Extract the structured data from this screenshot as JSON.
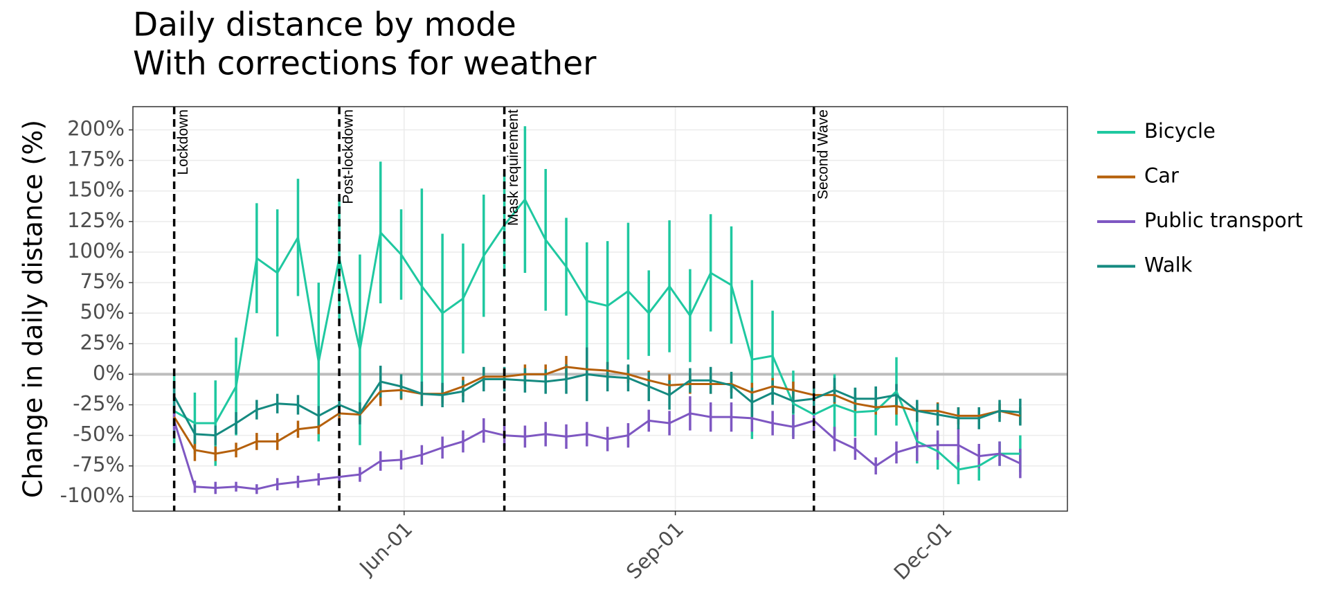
{
  "chart_data": {
    "type": "line",
    "title": "Daily distance by mode",
    "subtitle": "With corrections for weather",
    "y_label": "Change in daily distance (%)",
    "x": [
      "Mar-15",
      "Mar-22",
      "Mar-29",
      "Apr-05",
      "Apr-12",
      "Apr-19",
      "Apr-26",
      "May-03",
      "May-10",
      "May-17",
      "May-24",
      "May-31",
      "Jun-07",
      "Jun-14",
      "Jun-21",
      "Jun-28",
      "Jul-05",
      "Jul-12",
      "Jul-19",
      "Jul-26",
      "Aug-02",
      "Aug-09",
      "Aug-16",
      "Aug-23",
      "Aug-30",
      "Sep-06",
      "Sep-13",
      "Sep-20",
      "Sep-27",
      "Oct-04",
      "Oct-11",
      "Oct-18",
      "Oct-25",
      "Nov-01",
      "Nov-08",
      "Nov-15",
      "Nov-22",
      "Nov-29",
      "Dec-06",
      "Dec-13",
      "Dec-20",
      "Dec-27"
    ],
    "series": [
      {
        "name": "Bicycle",
        "color": "#1fc8a0",
        "values": [
          -30,
          -40,
          -40,
          -10,
          95,
          83,
          112,
          10,
          95,
          20,
          116,
          98,
          72,
          50,
          62,
          97,
          122,
          143,
          110,
          88,
          60,
          56,
          68,
          50,
          72,
          48,
          83,
          73,
          12,
          15,
          -24,
          -33,
          -25,
          -31,
          -30,
          -14,
          -55,
          -63,
          -78,
          -75,
          -65,
          -65
        ],
        "errors": [
          30,
          25,
          35,
          40,
          45,
          52,
          48,
          65,
          50,
          78,
          58,
          37,
          80,
          65,
          45,
          50,
          42,
          60,
          58,
          40,
          48,
          53,
          56,
          35,
          54,
          38,
          48,
          48,
          65,
          37,
          27,
          15,
          25,
          20,
          20,
          28,
          18,
          15,
          12,
          12,
          10,
          15
        ]
      },
      {
        "name": "Car",
        "color": "#b5600b",
        "values": [
          -35,
          -62,
          -65,
          -62,
          -55,
          -55,
          -45,
          -43,
          -32,
          -33,
          -14,
          -13,
          -16,
          -16,
          -10,
          -2,
          -2,
          0,
          0,
          6,
          4,
          3,
          0,
          -5,
          -9,
          -8,
          -8,
          -8,
          -15,
          -10,
          -13,
          -17,
          -17,
          -24,
          -27,
          -26,
          -30,
          -30,
          -34,
          -34,
          -30,
          -34
        ],
        "errors": [
          8,
          9,
          6,
          6,
          7,
          7,
          7,
          6,
          6,
          6,
          12,
          8,
          8,
          8,
          8,
          7,
          7,
          8,
          8,
          9,
          8,
          7,
          7,
          8,
          9,
          8,
          8,
          7,
          8,
          7,
          7,
          7,
          7,
          6,
          6,
          7,
          7,
          7,
          7,
          7,
          6,
          7
        ]
      },
      {
        "name": "Public transport",
        "color": "#7e57c2",
        "values": [
          -38,
          -92,
          -93,
          -92,
          -94,
          -90,
          -88,
          -86,
          -84,
          -82,
          -71,
          -70,
          -66,
          -60,
          -55,
          -46,
          -50,
          -51,
          -49,
          -51,
          -49,
          -53,
          -50,
          -38,
          -40,
          -32,
          -35,
          -35,
          -36,
          -40,
          -43,
          -38,
          -53,
          -61,
          -75,
          -64,
          -59,
          -58,
          -58,
          -67,
          -65,
          -73
        ],
        "errors": [
          8,
          5,
          5,
          4,
          4,
          5,
          5,
          5,
          5,
          6,
          8,
          8,
          8,
          9,
          9,
          10,
          9,
          9,
          10,
          10,
          10,
          10,
          10,
          9,
          10,
          14,
          12,
          12,
          11,
          10,
          10,
          10,
          10,
          9,
          7,
          9,
          12,
          12,
          14,
          10,
          10,
          12
        ]
      },
      {
        "name": "Walk",
        "color": "#158a80",
        "values": [
          -18,
          -49,
          -50,
          -40,
          -29,
          -24,
          -25,
          -34,
          -25,
          -32,
          -6,
          -10,
          -16,
          -17,
          -14,
          -4,
          -4,
          -5,
          -6,
          -4,
          0,
          -2,
          -3,
          -10,
          -17,
          -5,
          -5,
          -9,
          -23,
          -15,
          -22,
          -20,
          -13,
          -20,
          -20,
          -17,
          -30,
          -33,
          -36,
          -36,
          -30,
          -31
        ],
        "errors": [
          12,
          8,
          8,
          9,
          8,
          8,
          8,
          8,
          9,
          9,
          13,
          10,
          10,
          10,
          9,
          10,
          10,
          10,
          10,
          12,
          22,
          12,
          11,
          12,
          12,
          10,
          11,
          11,
          12,
          10,
          10,
          9,
          10,
          9,
          10,
          9,
          9,
          9,
          9,
          9,
          9,
          11
        ]
      }
    ],
    "annotations": [
      {
        "x": "Mar-15",
        "label": "Lockdown"
      },
      {
        "x": "May-10",
        "label": "Post-lockdown"
      },
      {
        "x": "Jul-05",
        "label": "Mask requirement"
      },
      {
        "x": "Oct-18",
        "label": "Second Wave"
      }
    ],
    "xlim": [
      "Mar-01",
      "Jan-12"
    ],
    "xticks": [
      "Jun-01",
      "Sep-01",
      "Dec-01"
    ],
    "ylim": [
      -112,
      219
    ],
    "yticks": [
      {
        "value": -100,
        "label": "-100%"
      },
      {
        "value": -75,
        "label": "-75%"
      },
      {
        "value": -50,
        "label": "-50%"
      },
      {
        "value": -25,
        "label": "-25%"
      },
      {
        "value": 0,
        "label": "0%"
      },
      {
        "value": 25,
        "label": "25%"
      },
      {
        "value": 50,
        "label": "50%"
      },
      {
        "value": 75,
        "label": "75%"
      },
      {
        "value": 100,
        "label": "100%"
      },
      {
        "value": 125,
        "label": "125%"
      },
      {
        "value": 150,
        "label": "150%"
      },
      {
        "value": 175,
        "label": "175%"
      },
      {
        "value": 200,
        "label": "200%"
      }
    ],
    "hline": 0,
    "grid": true,
    "legend": "right"
  }
}
